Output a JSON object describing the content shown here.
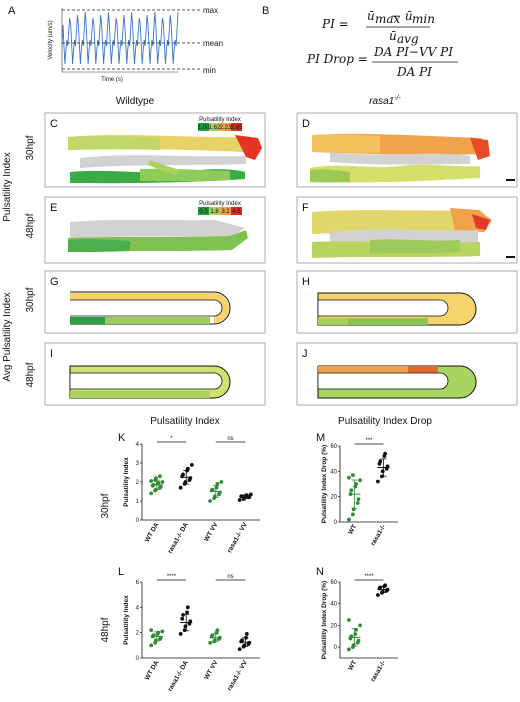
{
  "panels": {
    "A": {
      "label": "A",
      "annotations": [
        "max",
        "mean",
        "min"
      ],
      "xlabel": "Time (s)",
      "ylabel": "Velocity (um/s)"
    },
    "B": {
      "label": "B",
      "pi_lhs": "PI =",
      "pi_num": "ū",
      "pi_num_max": "max",
      "pi_minus": " − ū",
      "pi_num_min": "min",
      "pi_den": "ū",
      "pi_den_sub": "avg",
      "drop_lhs": "PI Drop =",
      "drop_num": "DA PI−VV PI",
      "drop_den": "DA PI"
    },
    "C": "C",
    "D": "D",
    "E": "E",
    "F": "F",
    "G": "G",
    "H": "H",
    "I": "I",
    "J": "J",
    "K": "K",
    "L": "L",
    "M": "M",
    "N": "N"
  },
  "columns": {
    "wildtype": "Wildtype",
    "mutant": "rasa1",
    "mutant_sup": "-/-"
  },
  "row_labels": {
    "pi": "Pulsatility Index",
    "avg_pi": "Avg Pulsatility Index",
    "t30": "30hpf",
    "t48": "48hpf"
  },
  "legends": {
    "title": "Pulsatility Index",
    "l30": [
      "1.00",
      "1.62",
      "2.23",
      "2.85"
    ],
    "l48": [
      "0.5",
      "1.8",
      "3.2",
      "4.5"
    ],
    "colors": [
      "#1e9e3a",
      "#a6d15a",
      "#f0a04a",
      "#e02a1e"
    ]
  },
  "section_titles": {
    "pi": "Pulsatility Index",
    "drop": "Pulsatility Index Drop"
  },
  "chart_data": [
    {
      "id": "K",
      "type": "scatter",
      "ylabel": "Pulsatility Index",
      "ylim": [
        0,
        4
      ],
      "yticks": [
        "0",
        "1",
        "2",
        "3",
        "4"
      ],
      "categories": [
        "WT DA",
        "rasa1-/- DA",
        "WT VV",
        "rasa1-/- VV"
      ],
      "series": [
        {
          "values": [
            1.4,
            1.55,
            1.6,
            1.7,
            1.75,
            1.8,
            1.85,
            1.9,
            1.95,
            2.0,
            2.05,
            2.1,
            2.2,
            2.3
          ]
        },
        {
          "values": [
            1.7,
            1.9,
            2.0,
            2.1,
            2.2,
            2.3,
            2.4,
            2.6,
            2.7,
            2.9
          ]
        },
        {
          "values": [
            1.0,
            1.15,
            1.25,
            1.35,
            1.45,
            1.55,
            1.6,
            1.7,
            1.9,
            2.0
          ]
        },
        {
          "values": [
            1.05,
            1.1,
            1.15,
            1.2,
            1.2,
            1.25,
            1.25,
            1.3,
            1.3,
            1.35
          ]
        }
      ],
      "means": [
        1.85,
        2.25,
        1.5,
        1.22
      ],
      "sig": [
        "*",
        "ns"
      ]
    },
    {
      "id": "L",
      "type": "scatter",
      "ylabel": "Pulsatility Index",
      "ylim": [
        0,
        6
      ],
      "yticks": [
        "0",
        "2",
        "4",
        "6"
      ],
      "categories": [
        "WT DA",
        "rasa1-/- DA",
        "WT VV",
        "rasa1-/- VV"
      ],
      "series": [
        {
          "values": [
            1.0,
            1.2,
            1.4,
            1.5,
            1.6,
            1.7,
            1.8,
            1.9,
            2.0,
            2.1,
            2.2
          ]
        },
        {
          "values": [
            1.9,
            2.2,
            2.5,
            2.7,
            2.9,
            3.1,
            3.4,
            3.6,
            4.0
          ]
        },
        {
          "values": [
            1.2,
            1.3,
            1.4,
            1.5,
            1.6,
            1.7,
            1.8,
            2.0,
            2.2
          ]
        },
        {
          "values": [
            0.7,
            0.9,
            1.0,
            1.1,
            1.2,
            1.3,
            1.4,
            1.6,
            1.9
          ]
        }
      ],
      "means": [
        1.7,
        2.8,
        1.6,
        1.25
      ],
      "sig": [
        "****",
        "ns"
      ]
    },
    {
      "id": "M",
      "type": "scatter",
      "ylabel": "Pulsatility Index Drop (%)",
      "ylim": [
        0,
        60
      ],
      "yticks": [
        "0",
        "20",
        "40",
        "60"
      ],
      "categories": [
        "WT",
        "rasa1-/-"
      ],
      "series": [
        {
          "values": [
            2,
            6,
            10,
            15,
            18,
            22,
            25,
            28,
            30,
            33,
            35,
            37
          ]
        },
        {
          "values": [
            32,
            36,
            40,
            42,
            44,
            46,
            48,
            52,
            54
          ]
        }
      ],
      "means": [
        22,
        43
      ],
      "sig": [
        "***"
      ]
    },
    {
      "id": "N",
      "type": "scatter",
      "ylabel": "Pulsatility Index Drop (%)",
      "ylim": [
        -10,
        60
      ],
      "yticks": [
        "0",
        "20",
        "40",
        "60"
      ],
      "categories": [
        "WT",
        "rasa1-/-"
      ],
      "series": [
        {
          "values": [
            -2,
            0,
            2,
            4,
            6,
            8,
            10,
            12,
            16,
            20,
            25
          ]
        },
        {
          "values": [
            48,
            50,
            51,
            52,
            53,
            54,
            55,
            56,
            57
          ]
        }
      ],
      "means": [
        9,
        53
      ],
      "sig": [
        "****"
      ]
    }
  ]
}
